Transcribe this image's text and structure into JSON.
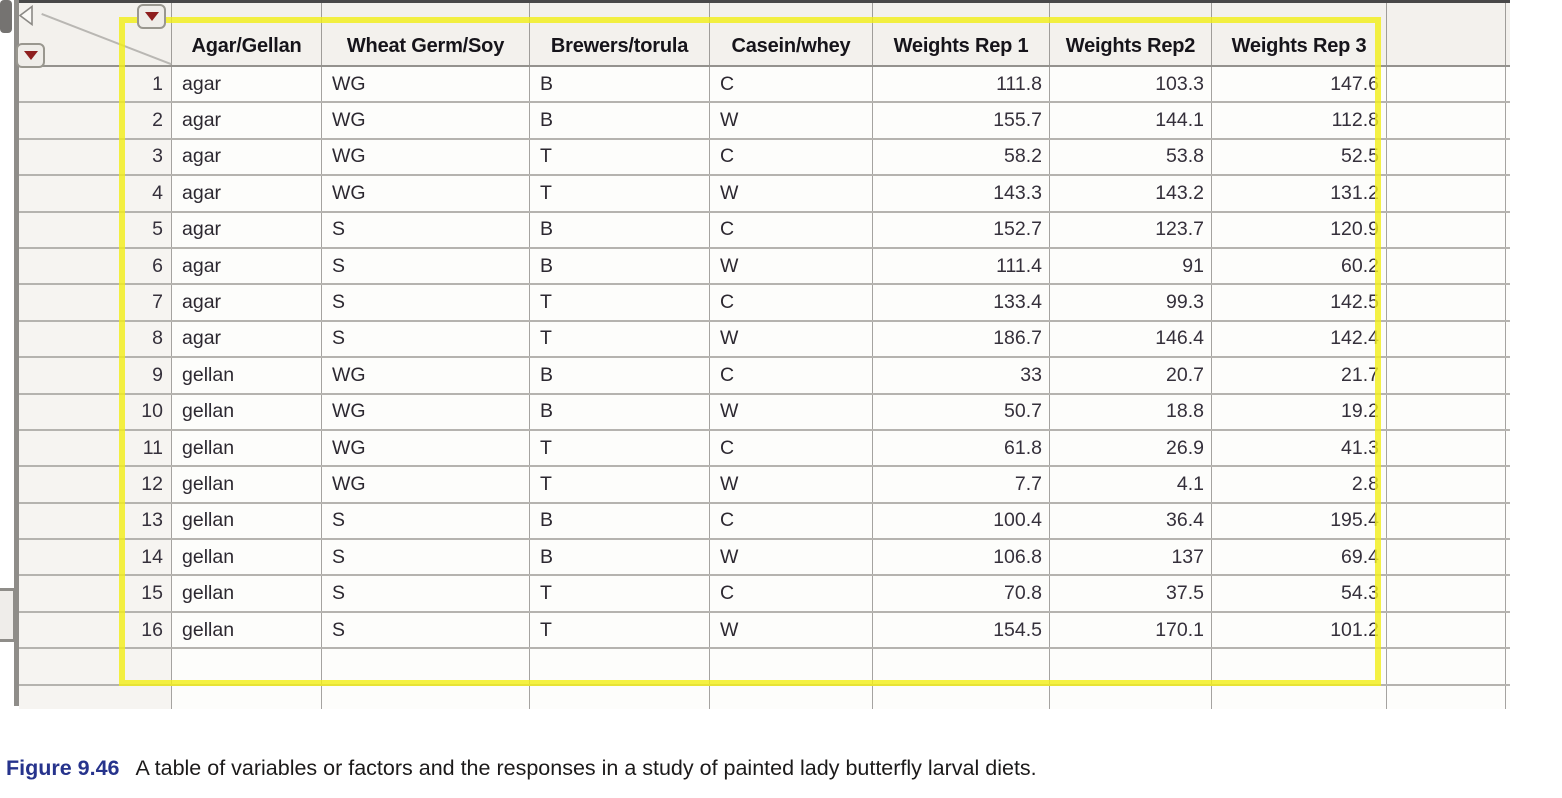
{
  "table": {
    "columns": [
      "Agar/Gellan",
      "Wheat Germ/Soy",
      "Brewers/torula",
      "Casein/whey",
      "Weights Rep 1",
      "Weights Rep2",
      "Weights Rep 3"
    ],
    "rows": [
      [
        "1",
        "agar",
        "WG",
        "B",
        "C",
        "111.8",
        "103.3",
        "147.6"
      ],
      [
        "2",
        "agar",
        "WG",
        "B",
        "W",
        "155.7",
        "144.1",
        "112.8"
      ],
      [
        "3",
        "agar",
        "WG",
        "T",
        "C",
        "58.2",
        "53.8",
        "52.5"
      ],
      [
        "4",
        "agar",
        "WG",
        "T",
        "W",
        "143.3",
        "143.2",
        "131.2"
      ],
      [
        "5",
        "agar",
        "S",
        "B",
        "C",
        "152.7",
        "123.7",
        "120.9"
      ],
      [
        "6",
        "agar",
        "S",
        "B",
        "W",
        "111.4",
        "91",
        "60.2"
      ],
      [
        "7",
        "agar",
        "S",
        "T",
        "C",
        "133.4",
        "99.3",
        "142.5"
      ],
      [
        "8",
        "agar",
        "S",
        "T",
        "W",
        "186.7",
        "146.4",
        "142.4"
      ],
      [
        "9",
        "gellan",
        "WG",
        "B",
        "C",
        "33",
        "20.7",
        "21.7"
      ],
      [
        "10",
        "gellan",
        "WG",
        "B",
        "W",
        "50.7",
        "18.8",
        "19.2"
      ],
      [
        "11",
        "gellan",
        "WG",
        "T",
        "C",
        "61.8",
        "26.9",
        "41.3"
      ],
      [
        "12",
        "gellan",
        "WG",
        "T",
        "W",
        "7.7",
        "4.1",
        "2.8"
      ],
      [
        "13",
        "gellan",
        "S",
        "B",
        "C",
        "100.4",
        "36.4",
        "195.4"
      ],
      [
        "14",
        "gellan",
        "S",
        "B",
        "W",
        "106.8",
        "137",
        "69.4"
      ],
      [
        "15",
        "gellan",
        "S",
        "T",
        "C",
        "70.8",
        "37.5",
        "54.3"
      ],
      [
        "16",
        "gellan",
        "S",
        "T",
        "W",
        "154.5",
        "170.1",
        "101.2"
      ]
    ],
    "empty_rows": 2
  },
  "icons": {
    "table_menu": "red-dropdown-triangle",
    "rows_menu": "red-dropdown-triangle",
    "collapse": "collapse-left-triangle"
  },
  "colors": {
    "highlight_box": "#f2ee1a",
    "dropdown_triangle": "#8e1f1f",
    "figure_label": "#26338c"
  },
  "caption": {
    "label": "Figure 9.46",
    "text": "A table of variables or factors and the responses in a study of painted lady butterfly larval diets."
  }
}
